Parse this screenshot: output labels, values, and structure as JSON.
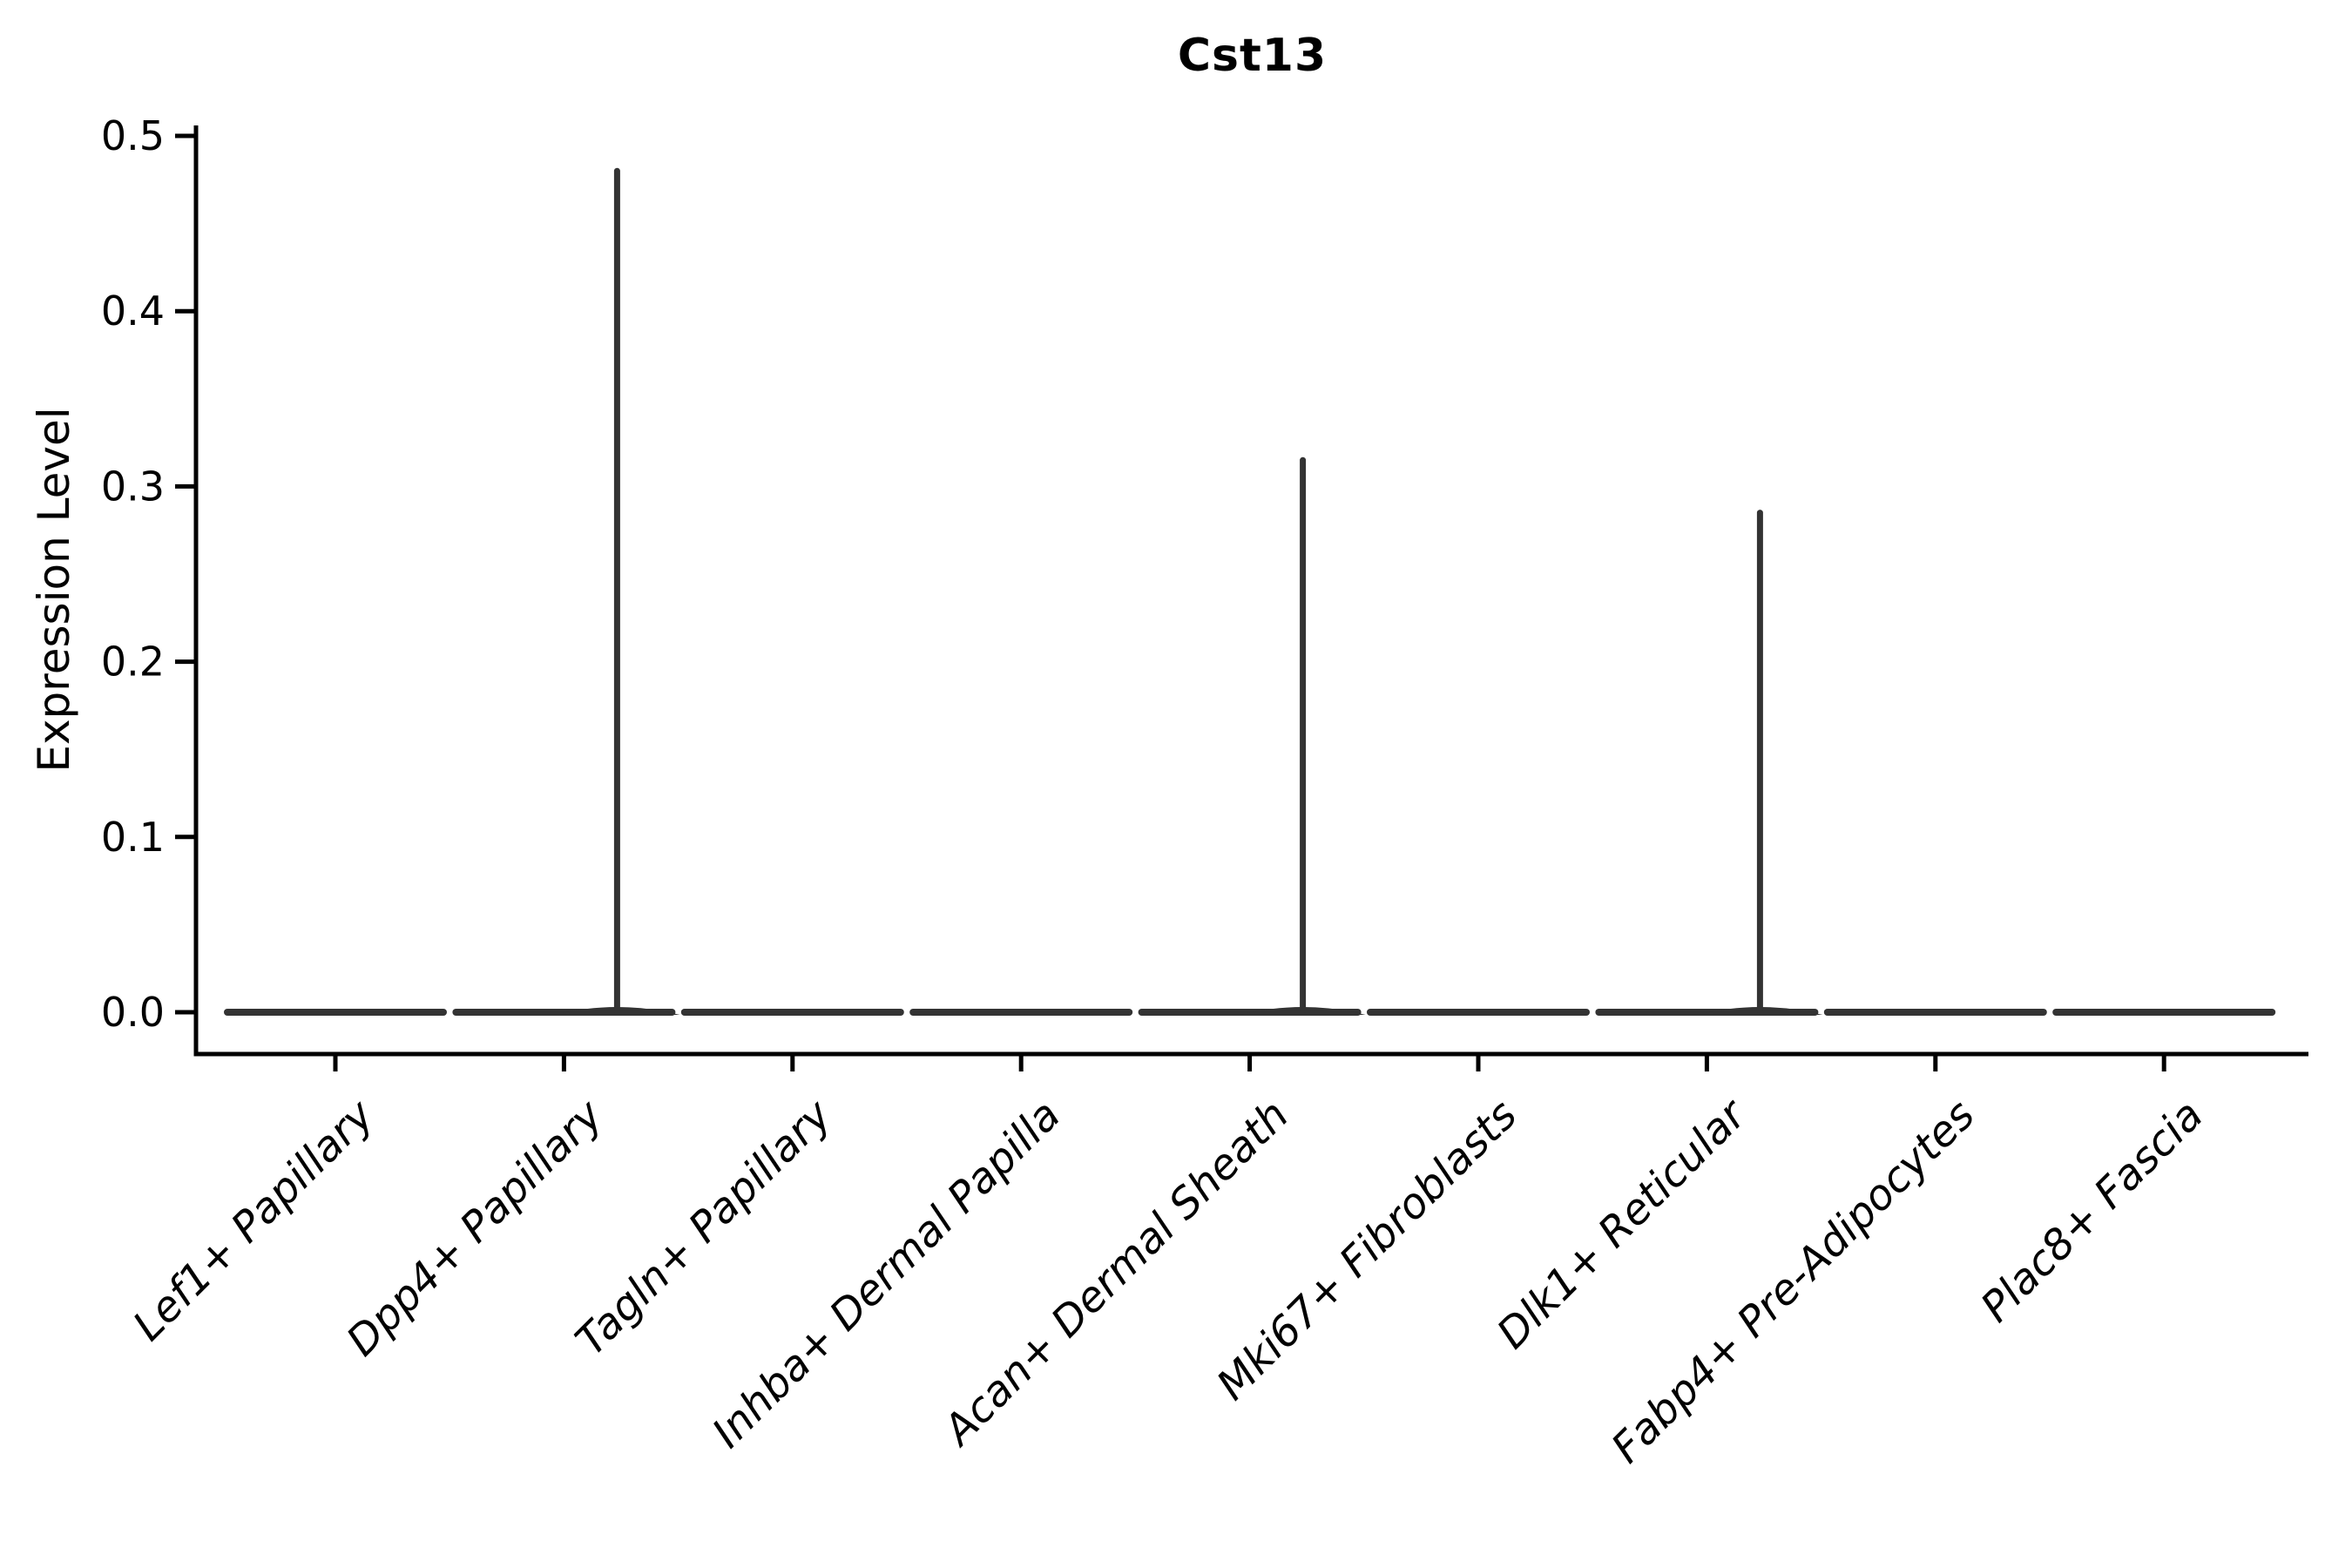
{
  "chart_data": {
    "type": "violin",
    "title": "Cst13",
    "ylabel": "Expression Level",
    "xlabel": "",
    "ylim": [
      0.0,
      0.5
    ],
    "yticks": [
      0.0,
      0.1,
      0.2,
      0.3,
      0.4,
      0.5
    ],
    "grid": false,
    "legend": "none",
    "categories": [
      "Lef1+ Papillary",
      "Dpp4+ Papillary",
      "Tagln+ Papillary",
      "Inhba+ Dermal Papilla",
      "Acan+ Dermal Sheath",
      "Mki67+ Fibroblasts",
      "Dlk1+ Reticular",
      "Fabp4+ Pre-Adipocytes",
      "Plac8+ Fascia"
    ],
    "violins": [
      {
        "category": "Lef1+ Papillary",
        "bulk_expression": 0.0,
        "max_expression": 0.0
      },
      {
        "category": "Dpp4+ Papillary",
        "bulk_expression": 0.0,
        "max_expression": 0.48
      },
      {
        "category": "Tagln+ Papillary",
        "bulk_expression": 0.0,
        "max_expression": 0.0
      },
      {
        "category": "Inhba+ Dermal Papilla",
        "bulk_expression": 0.0,
        "max_expression": 0.0
      },
      {
        "category": "Acan+ Dermal Sheath",
        "bulk_expression": 0.0,
        "max_expression": 0.315
      },
      {
        "category": "Mki67+ Fibroblasts",
        "bulk_expression": 0.0,
        "max_expression": 0.0
      },
      {
        "category": "Dlk1+ Reticular",
        "bulk_expression": 0.0,
        "max_expression": 0.285
      },
      {
        "category": "Fabp4+ Pre-Adipocytes",
        "bulk_expression": 0.0,
        "max_expression": 0.0
      },
      {
        "category": "Plac8+ Fascia",
        "bulk_expression": 0.0,
        "max_expression": 0.0
      }
    ],
    "colors": {
      "violin": "#333333",
      "axis": "#000000",
      "text": "#000000",
      "background": "#ffffff"
    }
  }
}
